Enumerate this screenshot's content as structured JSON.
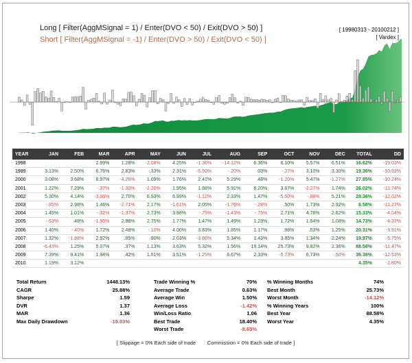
{
  "header": {
    "long_rule": "Long [ Filter(AggMSignal = 1) / Enter(DVO < 50) / Exit(DVO > 50) ]",
    "short_rule": "Short [ Filter(AggMSignal = -1) / Enter(DVO > 50) / Exit(DVO < 50) ]",
    "date_range": "[ 19980313 - 20100212 ]",
    "brand": "[ Vardex ]"
  },
  "chart_data": {
    "type": "bar",
    "description_series": [
      "monthly returns (bars)",
      "cumulative equity (area)"
    ],
    "title": "",
    "xlabel": "",
    "ylabel": "",
    "grid": false,
    "legend": "none",
    "colors": {
      "bars_pos": "#c8c8c8",
      "bars_neg": "#c8c8c8",
      "equity": "#1a9a46",
      "equity_light": "#5cc073"
    },
    "x_start": "1998-03",
    "x_end": "2010-02"
  },
  "table": {
    "columns": [
      "YEAR",
      "JAN",
      "FEB",
      "MAR",
      "APR",
      "MAY",
      "JUN",
      "JUL",
      "AUG",
      "SEP",
      "OCT",
      "NOV",
      "DEC",
      "TOTAL",
      "DD"
    ],
    "rows": [
      [
        "1998",
        "",
        "",
        "2.99%",
        "1.28%",
        "-2.08%",
        "4.25%",
        "-1.36%",
        "-14.12%",
        "6.36%",
        "8.10%",
        "5.57%",
        "6.51%",
        "16.62%",
        "-19.03%"
      ],
      [
        "1999",
        "3.13%",
        "2.50%",
        "6.76%",
        "2.83%",
        ".33%",
        "2.31%",
        "-5.50%",
        "-.20%",
        ".03%",
        "-.27%",
        "3.10%",
        "3.30%",
        "19.36%",
        "-10.93%"
      ],
      [
        "2000",
        "3.08%",
        "3.68%",
        "8.97%",
        "-4.26%",
        "1.09%",
        "1.76%",
        "2.41%",
        "5.29%",
        ".48%",
        "-1.20%",
        "5.47%",
        "-1.27%",
        "27.85%",
        "-10.24%"
      ],
      [
        "2001",
        "1.22%",
        "7.29%",
        "-.37%",
        "-1.30%",
        "-2.20%",
        "1.95%",
        "1.88%",
        "5.91%",
        "6.20%",
        "3.87%",
        "-2.27%",
        "1.74%",
        "26.02%",
        "-11.74%"
      ],
      [
        "2002",
        "5.30%",
        "4.14%",
        "-3.06%",
        "2.70%",
        "6.93%",
        "6.99%",
        "-1.12%",
        "2.33%",
        "1.47%",
        "-5.50%",
        "-.88%",
        "5.21%",
        "28.36%",
        "-12.02%"
      ],
      [
        "2003",
        "-.85%",
        "2.98%",
        "1.46%",
        "-2.71%",
        "2.17%",
        "-1.61%",
        "2.05%",
        "-1.76%",
        "-.28%",
        ".50%",
        "1.73%",
        "2.92%",
        "6.58%",
        "-11.27%"
      ],
      [
        "2004",
        "1.45%",
        "1.01%",
        "-.32%",
        "-1.37%",
        "2.73%",
        "3.98%",
        "-.75%",
        "-1.43%",
        "-.75%",
        "2.71%",
        "4.76%",
        "2.62%",
        "15.33%",
        "-4.04%"
      ],
      [
        "2005",
        "-.63%",
        ".48%",
        "-1.95%",
        "2.98%",
        "2.75%",
        "1.77%",
        "1.47%",
        "1.49%",
        "1.23%",
        "1.72%",
        "1.54%",
        "1.08%",
        "14.73%",
        "-4.37%"
      ],
      [
        "2006",
        "1.40%",
        "-.40%",
        "1.72%",
        "2.48%",
        "-.10%",
        "4.00%",
        "3.83%",
        "1.85%",
        "1.17%",
        ".98%",
        ".53%",
        "1.25%",
        "20.31%",
        "-3.91%"
      ],
      [
        "2007",
        "1.32%",
        "-1.88%",
        "2.92%",
        ".95%",
        ".90%",
        "2.03%",
        "-3.86%",
        "5.34%",
        "1.43%",
        "3.85%",
        "1.34%",
        "2.24%",
        "19.97%",
        "-5.75%"
      ],
      [
        "2008",
        "-6.43%",
        "1.25%",
        "5.07%",
        ".37%",
        "1.13%",
        "3.63%",
        "5.32%",
        "1.56%",
        "19.14%",
        "25.73%",
        "9.82%",
        "2.36%",
        "88.58%",
        "-11.47%"
      ],
      [
        "2009",
        "7.39%",
        "9.41%",
        "1.94%",
        ".42%",
        "1.51%",
        "3.51%",
        "-1.25%",
        "6.67%",
        "2.33%",
        "-5.73%",
        "6.73%",
        "-.50%",
        "36.38%",
        "-12.53%"
      ],
      [
        "2010",
        "1.19%",
        "3.12%",
        "",
        "",
        "",
        "",
        "",
        "",
        "",
        "",
        "",
        "",
        "4.35%",
        "-2.80%"
      ]
    ]
  },
  "stats": {
    "col1": [
      {
        "label": "Total Return",
        "value": "1448.13%"
      },
      {
        "label": "CAGR",
        "value": "25.88%"
      },
      {
        "label": "Sharpe",
        "value": "1.59"
      },
      {
        "label": "DVR",
        "value": "1.37"
      },
      {
        "label": "MAR",
        "value": "1.36"
      },
      {
        "label": "Max Daily Drawdown",
        "value": "-19.03%"
      }
    ],
    "col2": [
      {
        "label": "Trade Winning %",
        "value": "70%"
      },
      {
        "label": "Average Trade",
        "value": "0.63%"
      },
      {
        "label": "Average Win",
        "value": "1.50%"
      },
      {
        "label": "Average Loss",
        "value": "-1.42%"
      },
      {
        "label": "Win/Loss Ratio",
        "value": "1.06"
      },
      {
        "label": "Best Trade",
        "value": "18.40%"
      },
      {
        "label": "Worst Trade",
        "value": "-8.65%"
      }
    ],
    "col3": [
      {
        "label": "% Winning Months",
        "value": "74%"
      },
      {
        "label": "Best Month",
        "value": "25.73%"
      },
      {
        "label": "Worst Month",
        "value": "-14.12%"
      },
      {
        "label": "% Winning Years",
        "value": "100%"
      },
      {
        "label": "Best Year",
        "value": "88.58%"
      },
      {
        "label": "Worst Year",
        "value": "4.35%"
      }
    ]
  },
  "footer": {
    "slippage": "[ Slippage = 0% Each side of trade",
    "commission": "Commission = 0% Each side of trade ]"
  }
}
